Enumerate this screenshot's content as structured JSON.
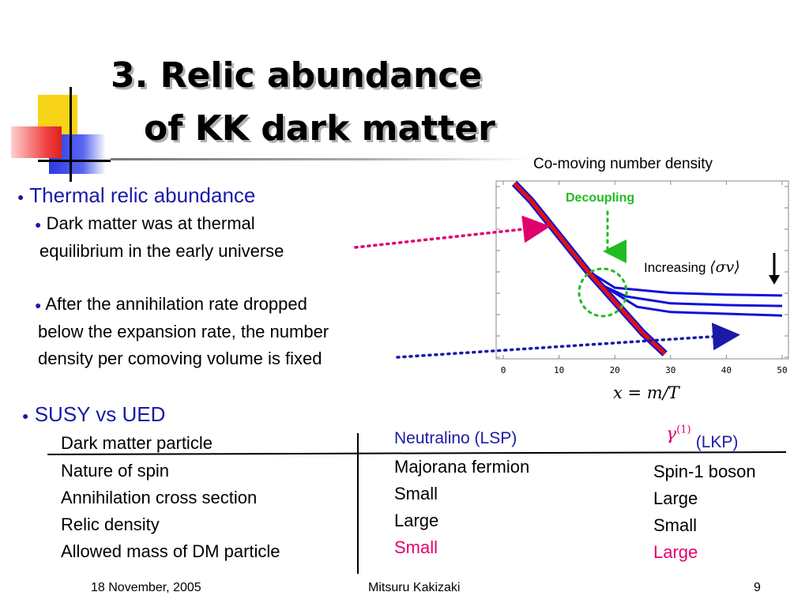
{
  "slide": {
    "title_line1": "3. Relic abundance",
    "title_line2": "of KK dark matter"
  },
  "bullets": {
    "bullet_glyph": "●",
    "thermal": "Thermal relic abundance",
    "sub1_line1": "Dark matter was at thermal",
    "sub1_line2": "equilibrium in the early universe",
    "sub2_line1": "After the annihilation rate dropped",
    "sub2_line2": "below the expansion rate, the number",
    "sub2_line3": "density per comoving volume is fixed",
    "susy": "SUSY vs UED"
  },
  "figure": {
    "title": "Co-moving number density",
    "decoupling_label": "Decoupling",
    "increasing_label": "Increasing",
    "sigma_v": "⟨σv⟩",
    "x_label": "x = m/T",
    "x_ticks": [
      "0",
      "10",
      "20",
      "30",
      "40",
      "50"
    ]
  },
  "chart_data": {
    "type": "line",
    "title": "Co-moving number density",
    "xlabel": "x = m/T",
    "ylabel": "",
    "xlim": [
      0,
      50
    ],
    "x_ticks": [
      0,
      10,
      20,
      30,
      40,
      50
    ],
    "y_ticks_labeled": false,
    "annotations": [
      "Decoupling",
      "Increasing ⟨σv⟩"
    ],
    "series": [
      {
        "x": [
          2,
          5,
          10,
          15,
          20,
          25,
          29
        ],
        "values": [
          1.0,
          0.9,
          0.7,
          0.5,
          0.32,
          0.14,
          0.02
        ]
      },
      {
        "x": [
          2,
          5,
          10,
          15,
          20,
          30,
          40,
          50
        ],
        "values": [
          1.0,
          0.9,
          0.7,
          0.5,
          0.4,
          0.37,
          0.36,
          0.355
        ]
      },
      {
        "x": [
          2,
          5,
          10,
          15,
          18,
          22,
          30,
          40,
          50
        ],
        "values": [
          1.0,
          0.9,
          0.7,
          0.5,
          0.41,
          0.35,
          0.31,
          0.3,
          0.295
        ]
      },
      {
        "x": [
          2,
          5,
          10,
          15,
          18,
          24,
          30,
          40,
          50
        ],
        "values": [
          1.0,
          0.9,
          0.7,
          0.5,
          0.41,
          0.29,
          0.26,
          0.25,
          0.24
        ]
      }
    ],
    "colors": {
      "equilibrium": "#e01010",
      "freeze_out": "#1010d8",
      "annotation": "#22bb22"
    }
  },
  "table": {
    "labels": [
      "Dark matter particle",
      "Nature of spin",
      "Annihilation cross section",
      "Relic density",
      "Allowed mass of DM particle"
    ],
    "susy_header": "Neutralino (LSP)",
    "susy_values": [
      "Majorana fermion",
      "Small",
      "Large",
      "Small"
    ],
    "ued_header_symbol": "γ(1)",
    "ued_header_sup": "(1)",
    "ued_header_gamma": "γ",
    "ued_header_text": "(LKP)",
    "ued_values": [
      "Spin-1 boson",
      "Large",
      "Small",
      "Large"
    ]
  },
  "footer": {
    "date": "18 November, 2005",
    "author": "Mitsuru Kakizaki",
    "page": "9"
  },
  "colors": {
    "bullet_blue": "#1a1aa8",
    "highlight_red": "#e0006e",
    "arrow_pink": "#e0006e",
    "arrow_blue": "#1a1aa8",
    "decor_yellow": "#f7d418",
    "decor_blue": "#2d3be0",
    "decor_red": "#f04040"
  }
}
